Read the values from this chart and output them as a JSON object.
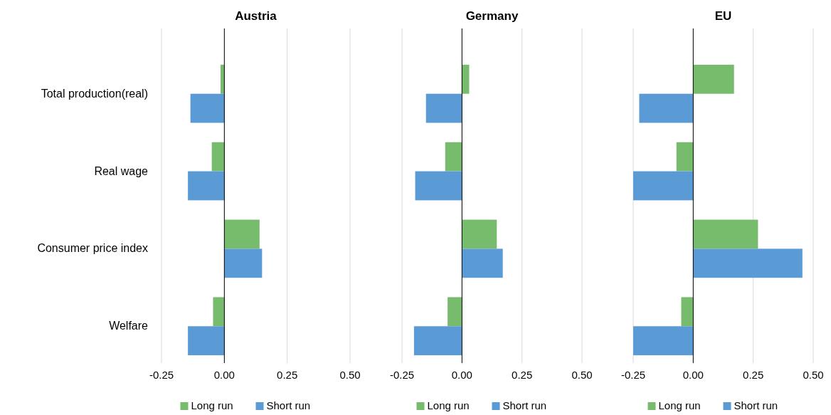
{
  "chart_data": [
    {
      "type": "bar",
      "orientation": "horizontal",
      "title": "Austria",
      "categories": [
        "Total production(real)",
        "Real wage",
        "Consumer price index",
        "Welfare"
      ],
      "series": [
        {
          "name": "Long run",
          "color": "#77bc6d",
          "values": [
            -0.015,
            -0.05,
            0.14,
            -0.045
          ]
        },
        {
          "name": "Short run",
          "color": "#5b9bd5",
          "values": [
            -0.135,
            -0.145,
            0.15,
            -0.145
          ]
        }
      ],
      "xlim": [
        -0.25,
        0.5
      ],
      "xticks": [
        {
          "value": -0.25,
          "label": "-0.25"
        },
        {
          "value": 0,
          "label": "0.00"
        },
        {
          "value": 0.25,
          "label": "0.25"
        },
        {
          "value": 0.5,
          "label": "0.50"
        }
      ],
      "grid": "x",
      "legend": "bottom"
    },
    {
      "type": "bar",
      "orientation": "horizontal",
      "title": "Germany",
      "categories": [
        null,
        null,
        null,
        null
      ],
      "series": [
        {
          "name": "Long run",
          "color": "#77bc6d",
          "values": [
            0.03,
            -0.07,
            0.145,
            -0.06
          ]
        },
        {
          "name": "Short run",
          "color": "#5b9bd5",
          "values": [
            -0.15,
            -0.195,
            0.17,
            -0.2
          ]
        }
      ],
      "xlim": [
        -0.25,
        0.5
      ],
      "xticks": [
        {
          "value": -0.25,
          "label": "-0.25"
        },
        {
          "value": 0,
          "label": "0.00"
        },
        {
          "value": 0.25,
          "label": "0.25"
        },
        {
          "value": 0.5,
          "label": "0.50"
        }
      ],
      "grid": "x",
      "legend": "bottom"
    },
    {
      "type": "bar",
      "orientation": "horizontal",
      "title": "EU",
      "categories": [
        null,
        null,
        null,
        null
      ],
      "series": [
        {
          "name": "Long run",
          "color": "#77bc6d",
          "values": [
            0.17,
            -0.07,
            0.27,
            -0.05
          ]
        },
        {
          "name": "Short run",
          "color": "#5b9bd5",
          "values": [
            -0.225,
            -0.25,
            0.455,
            -0.25
          ]
        }
      ],
      "xlim": [
        -0.25,
        0.5
      ],
      "xticks": [
        {
          "value": -0.25,
          "label": "-0.25"
        },
        {
          "value": 0,
          "label": "0.00"
        },
        {
          "value": 0.25,
          "label": "0.25"
        },
        {
          "value": 0.5,
          "label": "0.50"
        }
      ],
      "grid": "x",
      "legend": "bottom"
    }
  ]
}
